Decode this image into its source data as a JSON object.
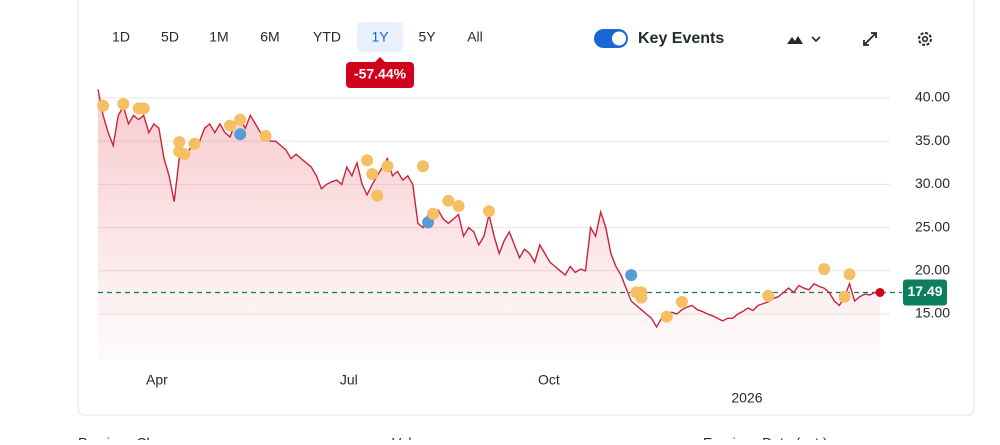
{
  "range_buttons": [
    "1D",
    "5D",
    "1M",
    "6M",
    "YTD",
    "1Y",
    "5Y",
    "All"
  ],
  "selected_range": "1Y",
  "change_badge": "-57.44%",
  "key_events_label": "Key Events",
  "stats_labels": [
    "Previous Close",
    "Volume",
    "Earnings Date (est.)"
  ],
  "chart_data": {
    "type": "line",
    "series": [
      {
        "name": "Price",
        "color": "#c8243a",
        "values": [
          41,
          38,
          36,
          34.5,
          38,
          39,
          37,
          38,
          37.5,
          38,
          36,
          37,
          36.5,
          33,
          31,
          28,
          33,
          33.5,
          34,
          35,
          35,
          36.5,
          37,
          36,
          37,
          36,
          35.5,
          37,
          37.5,
          36.5,
          38,
          37,
          36,
          35.5,
          35,
          35,
          34.5,
          34,
          33,
          33.5,
          33,
          32.5,
          32,
          31,
          29.5,
          30,
          30.3,
          30.5,
          30,
          32,
          31,
          32.5,
          30,
          28.8,
          30,
          31,
          32,
          33,
          31,
          31.5,
          30.5,
          31,
          30,
          25.5,
          25,
          26.5,
          26,
          27,
          26,
          25.5,
          26,
          26.5,
          24,
          25,
          24.5,
          23,
          24,
          26.5,
          24,
          22,
          23.5,
          24.5,
          23,
          21.5,
          22.5,
          22,
          21,
          23,
          22,
          21,
          20.5,
          20,
          19.5,
          20.5,
          19.8,
          20.2,
          20,
          25,
          24,
          26.8,
          25,
          22,
          20.5,
          19.5,
          18,
          16.5,
          16,
          15.5,
          15,
          14.5,
          13.5,
          14.5,
          15,
          15.2,
          15,
          15.5,
          15.8,
          16,
          15.5,
          15.3,
          15,
          14.8,
          14.5,
          14.2,
          14.5,
          14.5,
          15,
          15.3,
          15.7,
          15.4,
          16,
          16.2,
          16.4,
          16.8,
          17,
          17.5,
          18,
          17.5,
          18.3,
          18,
          17.8,
          18.5,
          18.2,
          18,
          17.5,
          16.5,
          16,
          17,
          18.5,
          16.5,
          17,
          17.3,
          17.2,
          17.5,
          17.49
        ]
      }
    ],
    "current_price": 17.49,
    "current_color": "#0d7d5f",
    "events": [
      {
        "x": 1,
        "value": 39.1,
        "color": "#f5c063"
      },
      {
        "x": 5,
        "value": 39.3,
        "color": "#f5c063"
      },
      {
        "x": 8,
        "value": 38.8,
        "color": "#f5c063"
      },
      {
        "x": 9,
        "value": 38.8,
        "color": "#f5c063"
      },
      {
        "x": 16,
        "value": 34.9,
        "color": "#f5c063"
      },
      {
        "x": 16,
        "value": 33.8,
        "color": "#f5c063"
      },
      {
        "x": 17,
        "value": 33.5,
        "color": "#f5c063"
      },
      {
        "x": 19,
        "value": 34.7,
        "color": "#f5c063"
      },
      {
        "x": 26,
        "value": 36.8,
        "color": "#f5c063"
      },
      {
        "x": 28,
        "value": 35.8,
        "color": "#5b9bd5"
      },
      {
        "x": 28,
        "value": 37.5,
        "color": "#f5c063"
      },
      {
        "x": 33,
        "value": 35.6,
        "color": "#f5c063"
      },
      {
        "x": 53,
        "value": 32.8,
        "color": "#f5c063"
      },
      {
        "x": 54,
        "value": 31.2,
        "color": "#f5c063"
      },
      {
        "x": 55,
        "value": 28.7,
        "color": "#f5c063"
      },
      {
        "x": 57,
        "value": 32.1,
        "color": "#f5c063"
      },
      {
        "x": 64,
        "value": 32.1,
        "color": "#f5c063"
      },
      {
        "x": 65,
        "value": 25.6,
        "color": "#5b9bd5"
      },
      {
        "x": 66,
        "value": 26.6,
        "color": "#f5c063"
      },
      {
        "x": 69,
        "value": 28.1,
        "color": "#f5c063"
      },
      {
        "x": 71,
        "value": 27.5,
        "color": "#f5c063"
      },
      {
        "x": 77,
        "value": 26.9,
        "color": "#f5c063"
      },
      {
        "x": 105,
        "value": 19.5,
        "color": "#5b9bd5"
      },
      {
        "x": 106,
        "value": 17.5,
        "color": "#f5c063"
      },
      {
        "x": 107,
        "value": 16.9,
        "color": "#f5c063"
      },
      {
        "x": 107,
        "value": 17.5,
        "color": "#f5c063"
      },
      {
        "x": 112,
        "value": 14.7,
        "color": "#f5c063"
      },
      {
        "x": 115,
        "value": 16.4,
        "color": "#f5c063"
      },
      {
        "x": 132,
        "value": 17.1,
        "color": "#f5c063"
      },
      {
        "x": 143,
        "value": 20.2,
        "color": "#f5c063"
      },
      {
        "x": 147,
        "value": 17.0,
        "color": "#f5c063"
      },
      {
        "x": 148,
        "value": 19.6,
        "color": "#f5c063"
      }
    ],
    "xticks": [
      {
        "value": 11.6,
        "label": "Apr"
      },
      {
        "value": 49.4,
        "label": "Jul"
      },
      {
        "value": 88.8,
        "label": "Oct"
      },
      {
        "value": 127.8,
        "label": "2026"
      }
    ],
    "ylim": [
      15,
      40
    ],
    "yticks": [
      {
        "value": 40,
        "label": "40.00"
      },
      {
        "value": 35,
        "label": "35.00"
      },
      {
        "value": 30,
        "label": "30.00"
      },
      {
        "value": 25,
        "label": "25.00"
      },
      {
        "value": 20,
        "label": "20.00"
      },
      {
        "value": 15,
        "label": "15.00"
      }
    ],
    "grid": true
  }
}
